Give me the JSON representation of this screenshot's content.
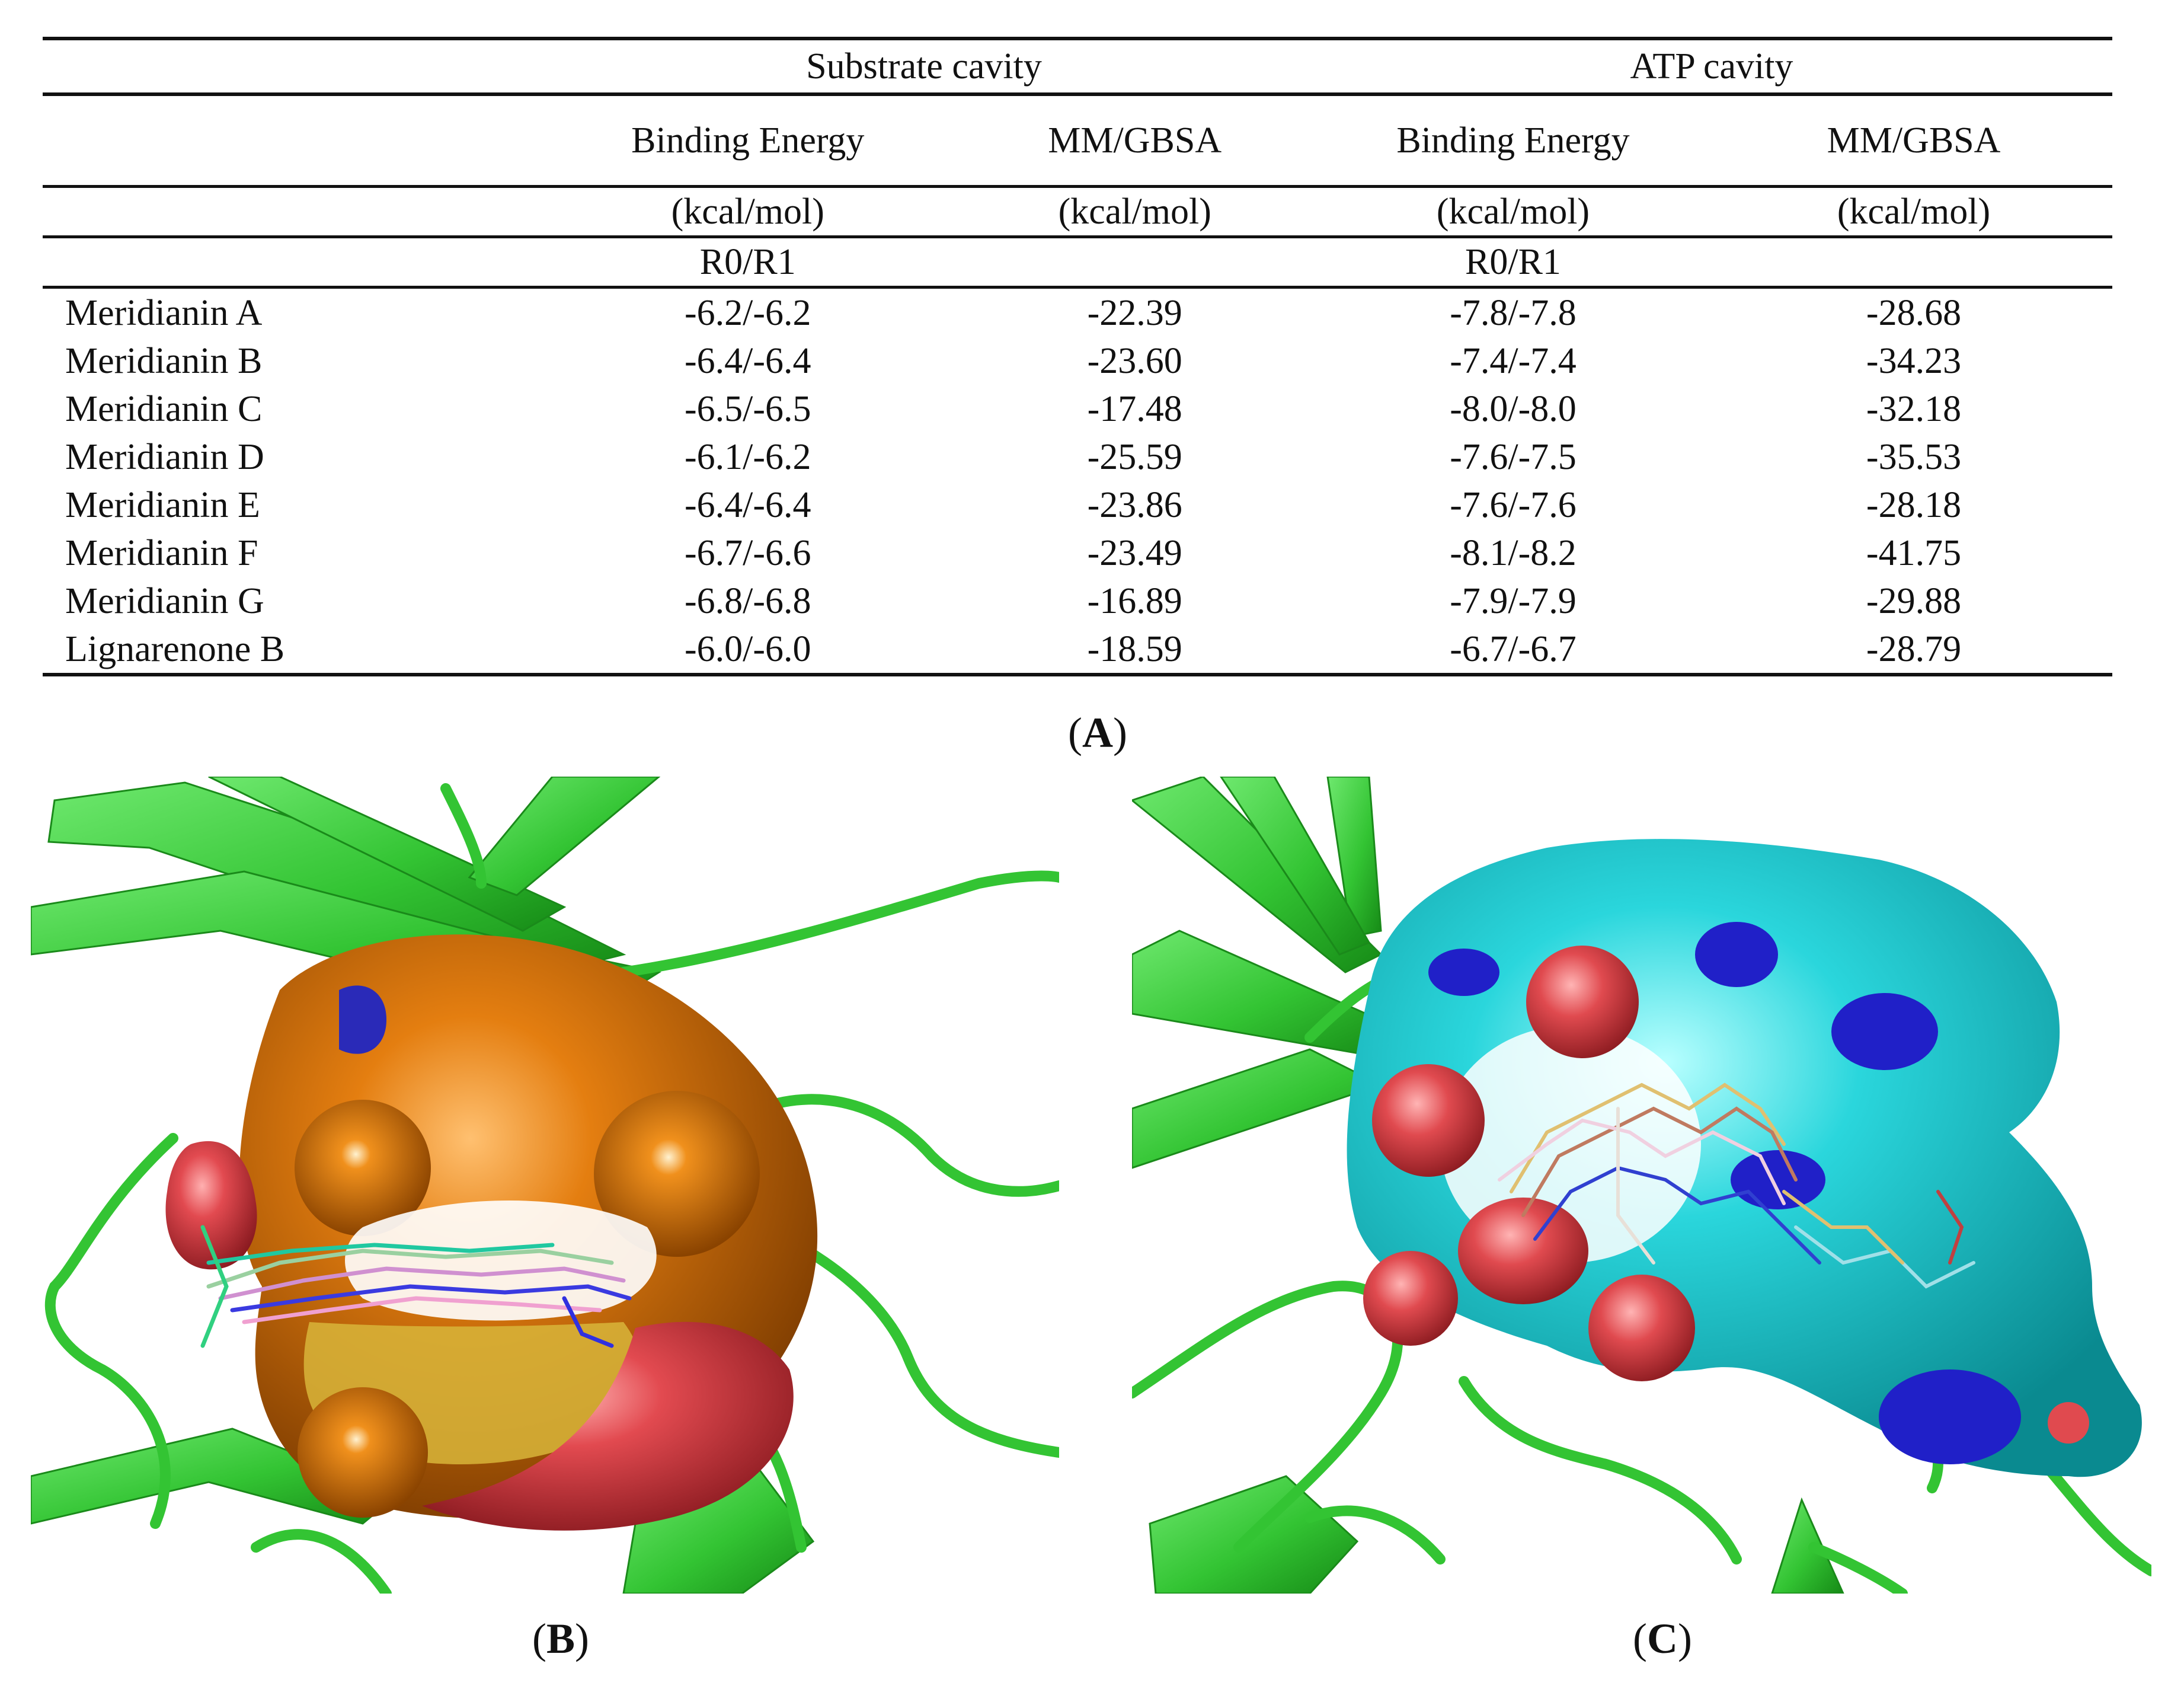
{
  "table": {
    "header": {
      "group_substrate": "Substrate cavity",
      "group_atp": "ATP cavity",
      "metric_binding": "Binding Energy",
      "metric_mmgbsa": "MM/GBSA",
      "unit": "(kcal/mol)",
      "r0r1": "R0/R1"
    },
    "rows": [
      {
        "name": "Meridianin A",
        "sub_be": "-6.2/-6.2",
        "sub_mm": "-22.39",
        "atp_be": "-7.8/-7.8",
        "atp_mm": "-28.68"
      },
      {
        "name": "Meridianin B",
        "sub_be": "-6.4/-6.4",
        "sub_mm": "-23.60",
        "atp_be": "-7.4/-7.4",
        "atp_mm": "-34.23"
      },
      {
        "name": "Meridianin C",
        "sub_be": "-6.5/-6.5",
        "sub_mm": "-17.48",
        "atp_be": "-8.0/-8.0",
        "atp_mm": "-32.18"
      },
      {
        "name": "Meridianin D",
        "sub_be": "-6.1/-6.2",
        "sub_mm": "-25.59",
        "atp_be": "-7.6/-7.5",
        "atp_mm": "-35.53"
      },
      {
        "name": "Meridianin E",
        "sub_be": "-6.4/-6.4",
        "sub_mm": "-23.86",
        "atp_be": "-7.6/-7.6",
        "atp_mm": "-28.18"
      },
      {
        "name": "Meridianin F",
        "sub_be": "-6.7/-6.6",
        "sub_mm": "-23.49",
        "atp_be": "-8.1/-8.2",
        "atp_mm": "-41.75"
      },
      {
        "name": "Meridianin G",
        "sub_be": "-6.8/-6.8",
        "sub_mm": "-16.89",
        "atp_be": "-7.9/-7.9",
        "atp_mm": "-29.88"
      },
      {
        "name": "Lignarenone B",
        "sub_be": "-6.0/-6.0",
        "sub_mm": "-18.59",
        "atp_be": "-6.7/-6.7",
        "atp_mm": "-28.79"
      }
    ]
  },
  "captions": {
    "a": {
      "open": "(",
      "letter": "A",
      "close": ")"
    },
    "b": {
      "open": "(",
      "letter": "B",
      "close": ")"
    },
    "c": {
      "open": "(",
      "letter": "C",
      "close": ")"
    }
  },
  "colors": {
    "protein_green": "#33c433",
    "surface_orange": "#d9740a",
    "surface_cyan": "#2ad6dc",
    "surface_red": "#e04a4f",
    "surface_blue": "#2020c8",
    "surface_yellow": "#d8c43a"
  }
}
